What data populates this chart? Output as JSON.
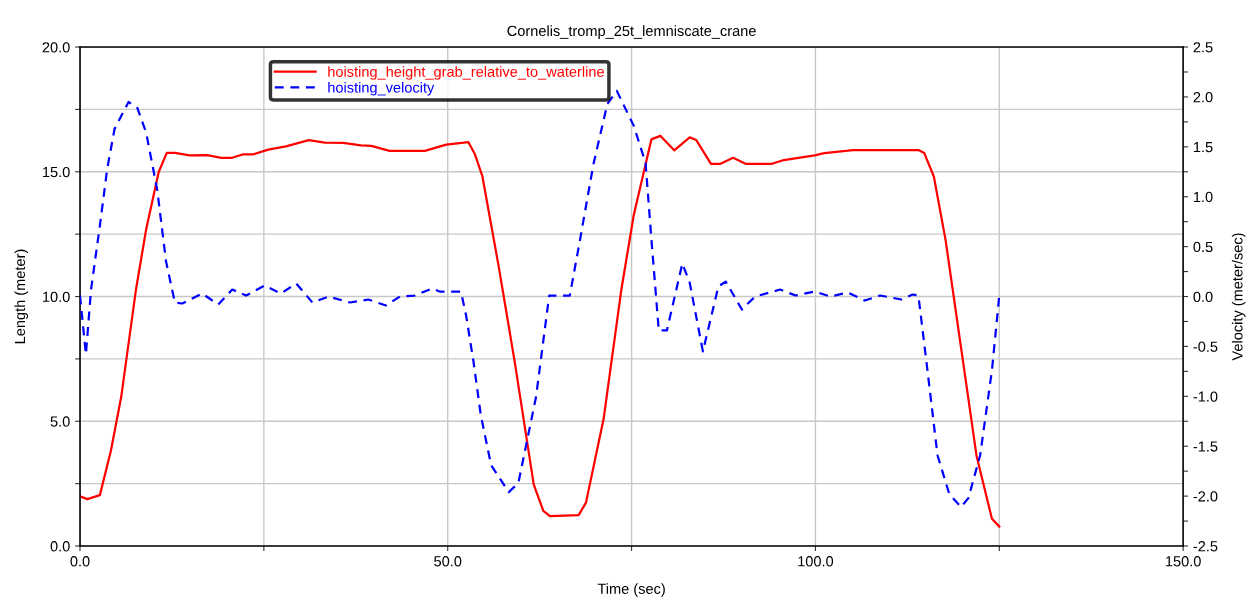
{
  "chart_data": {
    "type": "line",
    "title": "Cornelis_tromp_25t_lemniscate_crane",
    "xlabel": "Time (sec)",
    "ylabel": "Length (meter)",
    "y2label": "Velocity (meter/sec)",
    "xlim": [
      0,
      150
    ],
    "xticks": [
      {
        "value": 0,
        "label": "0.0"
      },
      {
        "value": 25,
        "label": null
      },
      {
        "value": 50,
        "label": "50.0"
      },
      {
        "value": 75,
        "label": null
      },
      {
        "value": 100,
        "label": "100.0"
      },
      {
        "value": 125,
        "label": null
      },
      {
        "value": 150,
        "label": "150.0"
      }
    ],
    "ylim": [
      0,
      20
    ],
    "yticks": [
      {
        "value": 0,
        "label": "0.0"
      },
      {
        "value": 2.5,
        "label": null
      },
      {
        "value": 5,
        "label": "5.0"
      },
      {
        "value": 7.5,
        "label": null
      },
      {
        "value": 10,
        "label": "10.0"
      },
      {
        "value": 12.5,
        "label": null
      },
      {
        "value": 15,
        "label": "15.0"
      },
      {
        "value": 17.5,
        "label": null
      },
      {
        "value": 20,
        "label": "20.0"
      }
    ],
    "y2lim": [
      -2.5,
      2.5
    ],
    "y2ticks": [
      {
        "value": -2.5,
        "label": "-2.5"
      },
      {
        "value": -2.25,
        "label": null
      },
      {
        "value": -2.0,
        "label": "-2.0"
      },
      {
        "value": -1.75,
        "label": null
      },
      {
        "value": -1.5,
        "label": "-1.5"
      },
      {
        "value": -1.25,
        "label": null
      },
      {
        "value": -1.0,
        "label": "-1.0"
      },
      {
        "value": -0.75,
        "label": null
      },
      {
        "value": -0.5,
        "label": "-0.5"
      },
      {
        "value": -0.25,
        "label": null
      },
      {
        "value": 0,
        "label": "0.0"
      },
      {
        "value": 0.25,
        "label": null
      },
      {
        "value": 0.5,
        "label": "0.5"
      },
      {
        "value": 0.75,
        "label": null
      },
      {
        "value": 1.0,
        "label": "1.0"
      },
      {
        "value": 1.25,
        "label": null
      },
      {
        "value": 1.5,
        "label": "1.5"
      },
      {
        "value": 1.75,
        "label": null
      },
      {
        "value": 2.0,
        "label": "2.0"
      },
      {
        "value": 2.25,
        "label": null
      },
      {
        "value": 2.5,
        "label": "2.5"
      }
    ],
    "grid": true,
    "legend": "top left",
    "marker": "none",
    "series": [
      {
        "name": "hoisting_height_grab_relative_to_waterline",
        "color": "#ff0000",
        "line_style": "solid",
        "x": [
          0,
          1,
          2.7,
          4.2,
          5.6,
          7.6,
          9.0,
          10.7,
          11.8,
          12.9,
          14.9,
          17.3,
          19.2,
          20.7,
          22.2,
          23.6,
          25.6,
          28.0,
          31.1,
          33.3,
          35.8,
          38.2,
          39.6,
          42.1,
          46.9,
          49.8,
          52.8,
          53.7,
          54.7,
          56.9,
          59.1,
          61.7,
          63.0,
          63.9,
          67.8,
          68.8,
          71.2,
          73.6,
          75.3,
          77.7,
          78.9,
          80.8,
          82.9,
          83.8,
          85.8,
          87.1,
          88.8,
          90.5,
          94.1,
          95.7,
          99.9,
          101.2,
          105.1,
          114.0,
          114.8,
          116.1,
          117.7,
          119.8,
          121.9,
          124.0,
          125.0
        ],
        "values": [
          1.99,
          1.88,
          2.04,
          3.82,
          5.97,
          10.26,
          12.7,
          14.99,
          15.76,
          15.76,
          15.66,
          15.67,
          15.56,
          15.56,
          15.7,
          15.7,
          15.89,
          16.02,
          16.27,
          16.17,
          16.16,
          16.06,
          16.04,
          15.84,
          15.84,
          16.09,
          16.19,
          15.7,
          14.84,
          11.26,
          7.4,
          2.46,
          1.41,
          1.2,
          1.24,
          1.74,
          5.1,
          10.26,
          13.27,
          16.3,
          16.44,
          15.86,
          16.38,
          16.27,
          15.32,
          15.32,
          15.56,
          15.32,
          15.32,
          15.47,
          15.66,
          15.75,
          15.87,
          15.87,
          15.75,
          14.81,
          12.26,
          7.95,
          3.63,
          1.09,
          0.78
        ]
      },
      {
        "name": "hoisting_velocity",
        "color": "#0000ff",
        "axis": "y2",
        "line_style": "dashed",
        "x": [
          0,
          0.8,
          1.5,
          2.7,
          3.7,
          4.7,
          6.6,
          7.8,
          9.0,
          10.5,
          11.7,
          12.9,
          13.9,
          16.6,
          18.8,
          20.7,
          22.6,
          25.1,
          27.3,
          29.4,
          31.6,
          33.8,
          36.7,
          39.2,
          41.6,
          43.5,
          45.5,
          47.9,
          48.9,
          51.8,
          52.5,
          53.5,
          54.5,
          55.9,
          58.3,
          59.6,
          62.0,
          63.8,
          66.6,
          67.8,
          69.8,
          71.7,
          73.0,
          75.3,
          76.9,
          77.7,
          78.7,
          79.8,
          81.9,
          82.9,
          84.7,
          86.8,
          87.8,
          90.0,
          91.8,
          95.2,
          97.3,
          99.9,
          102.0,
          104.4,
          106.7,
          108.8,
          111.7,
          113.2,
          114.0,
          115.3,
          116.6,
          118.2,
          119.8,
          120.8,
          122.4,
          124.0,
          125.0
        ],
        "values": [
          0.01,
          -0.58,
          0.07,
          0.71,
          1.28,
          1.68,
          1.95,
          1.89,
          1.64,
          1.07,
          0.35,
          -0.06,
          -0.07,
          0.03,
          -0.08,
          0.07,
          0.01,
          0.11,
          0.03,
          0.13,
          -0.06,
          0.0,
          -0.06,
          -0.03,
          -0.09,
          0.0,
          0.01,
          0.08,
          0.05,
          0.05,
          -0.19,
          -0.65,
          -1.19,
          -1.69,
          -1.96,
          -1.87,
          -1.01,
          0.01,
          0.01,
          0.49,
          1.32,
          1.93,
          2.06,
          1.71,
          1.34,
          0.57,
          -0.34,
          -0.34,
          0.33,
          0.14,
          -0.55,
          0.1,
          0.15,
          -0.13,
          0.0,
          0.07,
          0.01,
          0.05,
          0.0,
          0.04,
          -0.04,
          0.01,
          -0.03,
          0.02,
          0.01,
          -0.78,
          -1.59,
          -1.98,
          -2.11,
          -2.02,
          -1.59,
          -0.74,
          0.01
        ]
      }
    ]
  }
}
